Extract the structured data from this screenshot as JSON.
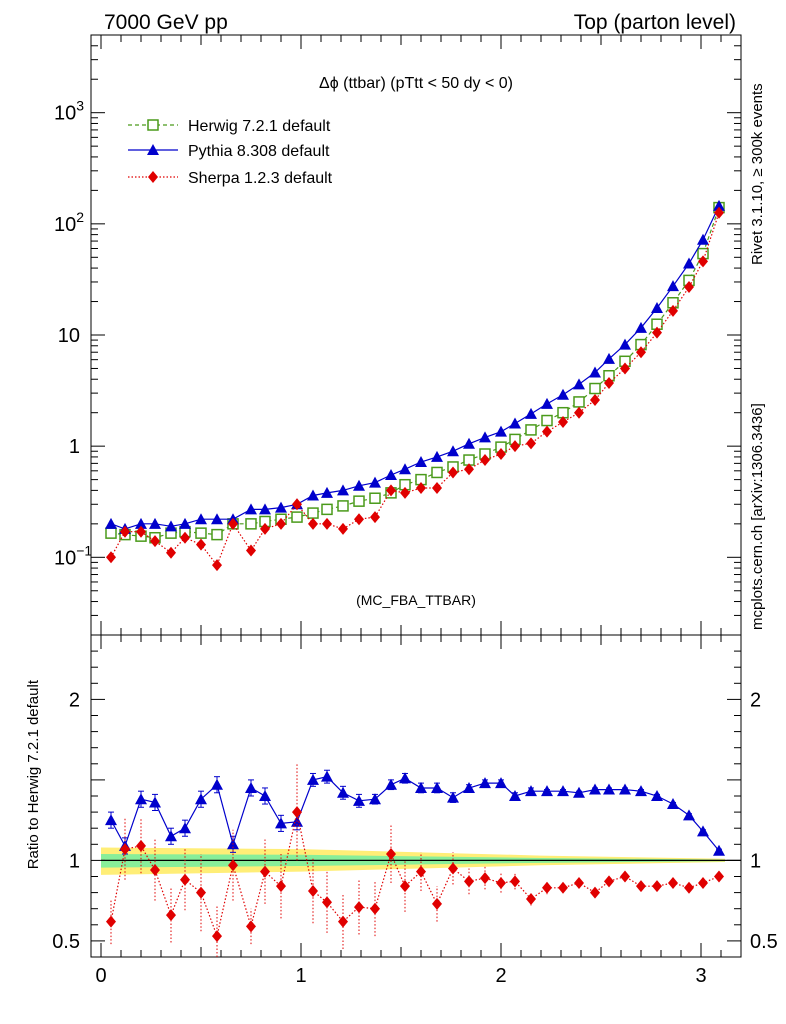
{
  "header": {
    "left": "7000 GeV pp",
    "right": "Top (parton level)"
  },
  "side_labels": {
    "rivet": "Rivet 3.1.10, ≥ 300k events",
    "mcplots": "mcplots.cern.ch [arXiv:1306.3436]"
  },
  "chart_data": [
    {
      "type": "line",
      "title": "Δϕ (ttbar) (pTtt < 50 dy < 0)",
      "watermark": "(MC_FBA_TTBAR)",
      "yscale": "log",
      "xlim": [
        -0.05,
        3.2
      ],
      "ylim": [
        0.02,
        5000
      ],
      "x_ticks": [
        "0",
        "1",
        "2",
        "3"
      ],
      "y_ticks": [
        {
          "value": 0.1,
          "base": "10",
          "exp": "−1"
        },
        {
          "value": 1,
          "base": "1",
          "exp": ""
        },
        {
          "value": 10,
          "base": "10",
          "exp": ""
        },
        {
          "value": 100,
          "base": "10",
          "exp": "2"
        },
        {
          "value": 1000,
          "base": "10",
          "exp": "3"
        }
      ],
      "legend_position": "top-left",
      "x": [
        0.05,
        0.12,
        0.2,
        0.27,
        0.35,
        0.42,
        0.5,
        0.58,
        0.66,
        0.75,
        0.82,
        0.9,
        0.98,
        1.06,
        1.13,
        1.21,
        1.29,
        1.37,
        1.45,
        1.52,
        1.6,
        1.68,
        1.76,
        1.84,
        1.92,
        2.0,
        2.07,
        2.15,
        2.23,
        2.31,
        2.39,
        2.47,
        2.54,
        2.62,
        2.7,
        2.78,
        2.86,
        2.94,
        3.01,
        3.09
      ],
      "series": [
        {
          "name": "Herwig 7.2.1 default",
          "color": "#4a9a1a",
          "marker": "open-square",
          "line": "dashed",
          "values": [
            0.165,
            0.16,
            0.155,
            0.15,
            0.165,
            0.17,
            0.165,
            0.16,
            0.2,
            0.2,
            0.21,
            0.22,
            0.23,
            0.25,
            0.27,
            0.29,
            0.32,
            0.34,
            0.38,
            0.45,
            0.5,
            0.58,
            0.65,
            0.75,
            0.85,
            0.98,
            1.15,
            1.4,
            1.7,
            2.0,
            2.5,
            3.3,
            4.3,
            5.8,
            8.2,
            12.5,
            19.5,
            31,
            54,
            140
          ]
        },
        {
          "name": "Pythia 8.308 default",
          "color": "#0000cc",
          "marker": "filled-triangle",
          "line": "solid",
          "values": [
            0.2,
            0.18,
            0.2,
            0.2,
            0.19,
            0.2,
            0.22,
            0.22,
            0.22,
            0.27,
            0.27,
            0.28,
            0.3,
            0.36,
            0.38,
            0.4,
            0.44,
            0.47,
            0.55,
            0.62,
            0.72,
            0.8,
            0.9,
            1.05,
            1.2,
            1.35,
            1.6,
            1.95,
            2.4,
            2.9,
            3.6,
            4.6,
            6.1,
            8.2,
            11.6,
            17.5,
            27.5,
            44,
            72,
            145
          ]
        },
        {
          "name": "Sherpa 1.2.3 default",
          "color": "#e00000",
          "marker": "filled-diamond",
          "line": "dotted",
          "values": [
            0.1,
            0.17,
            0.17,
            0.14,
            0.11,
            0.15,
            0.13,
            0.085,
            0.2,
            0.115,
            0.18,
            0.2,
            0.3,
            0.2,
            0.2,
            0.18,
            0.22,
            0.23,
            0.4,
            0.38,
            0.42,
            0.42,
            0.58,
            0.62,
            0.75,
            0.85,
            1.0,
            1.06,
            1.35,
            1.65,
            2.0,
            2.6,
            3.7,
            5.0,
            7.0,
            10.5,
            16.5,
            27,
            46,
            126
          ]
        }
      ]
    },
    {
      "type": "line",
      "ylabel": "Ratio to Herwig 7.2.1 default",
      "yscale": "linear",
      "xlim": [
        -0.05,
        3.2
      ],
      "ylim": [
        0.4,
        2.4
      ],
      "y_ticks": [
        "0.5",
        "1",
        "2"
      ],
      "x_ticks": [
        "0",
        "1",
        "2",
        "3"
      ],
      "reference": 1,
      "x": [
        0.05,
        0.12,
        0.2,
        0.27,
        0.35,
        0.42,
        0.5,
        0.58,
        0.66,
        0.75,
        0.82,
        0.9,
        0.98,
        1.06,
        1.13,
        1.21,
        1.29,
        1.37,
        1.45,
        1.52,
        1.6,
        1.68,
        1.76,
        1.84,
        1.92,
        2.0,
        2.07,
        2.15,
        2.23,
        2.31,
        2.39,
        2.47,
        2.54,
        2.62,
        2.7,
        2.78,
        2.86,
        2.94,
        3.01,
        3.09
      ],
      "series": [
        {
          "name": "Pythia 8.308 default",
          "color": "#0000cc",
          "values": [
            1.25,
            1.09,
            1.38,
            1.36,
            1.15,
            1.2,
            1.38,
            1.47,
            1.1,
            1.45,
            1.4,
            1.23,
            1.24,
            1.5,
            1.52,
            1.42,
            1.37,
            1.38,
            1.47,
            1.51,
            1.45,
            1.45,
            1.39,
            1.45,
            1.48,
            1.48,
            1.4,
            1.43,
            1.43,
            1.43,
            1.42,
            1.44,
            1.44,
            1.44,
            1.43,
            1.4,
            1.35,
            1.28,
            1.18,
            1.06
          ],
          "errors": [
            0.05,
            0.05,
            0.05,
            0.05,
            0.05,
            0.05,
            0.05,
            0.05,
            0.05,
            0.05,
            0.05,
            0.05,
            0.05,
            0.04,
            0.04,
            0.04,
            0.04,
            0.03,
            0.03,
            0.03,
            0.03,
            0.03,
            0.03,
            0.02,
            0.02,
            0.02,
            0.02,
            0.02,
            0.01,
            0.01,
            0.01,
            0.01,
            0.01,
            0.01,
            0.01,
            0.01,
            0.01,
            0.01,
            0.01,
            0.01
          ]
        },
        {
          "name": "Sherpa 1.2.3 default",
          "color": "#e00000",
          "values": [
            0.62,
            1.07,
            1.09,
            0.94,
            0.66,
            0.88,
            0.8,
            0.53,
            0.97,
            0.59,
            0.93,
            0.84,
            1.3,
            0.81,
            0.74,
            0.62,
            0.71,
            0.7,
            1.04,
            0.84,
            0.93,
            0.73,
            0.95,
            0.87,
            0.89,
            0.86,
            0.87,
            0.76,
            0.83,
            0.83,
            0.86,
            0.8,
            0.87,
            0.9,
            0.84,
            0.84,
            0.86,
            0.83,
            0.86,
            0.9
          ],
          "errors": [
            0.14,
            0.19,
            0.17,
            0.19,
            0.17,
            0.19,
            0.24,
            0.19,
            0.22,
            0.11,
            0.2,
            0.2,
            0.3,
            0.2,
            0.19,
            0.17,
            0.17,
            0.17,
            0.18,
            0.16,
            0.12,
            0.11,
            0.1,
            0.08,
            0.07,
            0.06,
            0.05,
            0.04,
            0.04,
            0.03,
            0.03,
            0.03,
            0.02,
            0.02,
            0.02,
            0.02,
            0.02,
            0.02,
            0.02,
            0.02
          ]
        }
      ]
    }
  ]
}
